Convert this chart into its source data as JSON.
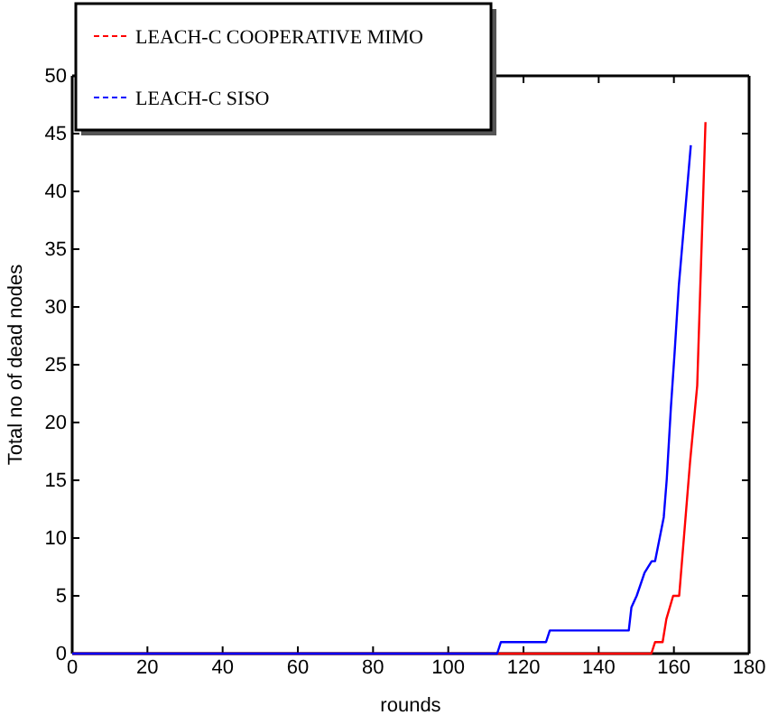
{
  "chart_data": {
    "type": "line",
    "xlabel": "rounds",
    "ylabel": "Total no of dead nodes",
    "xlim": [
      0,
      180
    ],
    "ylim": [
      0,
      50
    ],
    "xticks": [
      0,
      20,
      40,
      60,
      80,
      100,
      120,
      140,
      160,
      180
    ],
    "yticks": [
      0,
      5,
      10,
      15,
      20,
      25,
      30,
      35,
      40,
      45,
      50
    ],
    "grid": false,
    "legend": "top left",
    "series": [
      {
        "name": "LEACH-C COOPERATIVE MIMO",
        "color": "#ff0000",
        "x": [
          0,
          154,
          155,
          157,
          158,
          159.8,
          161.4,
          164.3,
          166.2,
          168.4
        ],
        "values": [
          0,
          0,
          1,
          1,
          3,
          5,
          5,
          16.6,
          23.2,
          46
        ]
      },
      {
        "name": "LEACH-C SISO",
        "color": "#0000ff",
        "x": [
          0,
          113,
          114,
          126,
          127,
          147,
          148,
          148.7,
          150.1,
          152.2,
          154.1,
          155,
          157.3,
          158.1,
          159.2,
          160.2,
          161.3,
          164.5
        ],
        "values": [
          0,
          0,
          1,
          1,
          2,
          2,
          2,
          4,
          5,
          7,
          8,
          8,
          11.8,
          15.1,
          21.3,
          26.1,
          31.8,
          44
        ]
      }
    ]
  }
}
